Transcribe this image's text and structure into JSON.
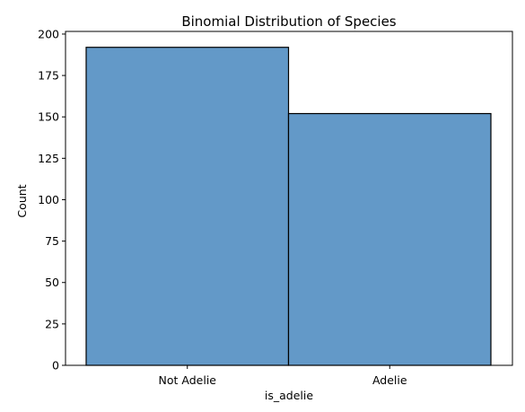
{
  "chart_data": {
    "type": "bar",
    "title": "Binomial Distribution of Species",
    "xlabel": "is_adelie",
    "ylabel": "Count",
    "categories": [
      "Not Adelie",
      "Adelie"
    ],
    "values": [
      192,
      152
    ],
    "ylim": [
      0,
      201.6
    ],
    "yticks": [
      0,
      25,
      50,
      75,
      100,
      125,
      150,
      175,
      200
    ],
    "grid": false,
    "bar_color": "#6399c8",
    "bar_edge_color": "#000000"
  }
}
